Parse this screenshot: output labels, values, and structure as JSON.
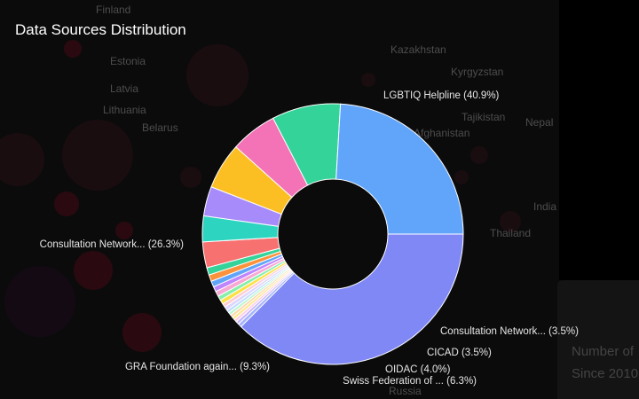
{
  "map_labels": [
    {
      "text": "Finland"
    },
    {
      "text": "Estonia"
    },
    {
      "text": "Latvia"
    },
    {
      "text": "Lithuania"
    },
    {
      "text": "Belarus"
    },
    {
      "text": "Kazakhstan"
    },
    {
      "text": "Kyrgyzstan"
    },
    {
      "text": "Tajikistan"
    },
    {
      "text": "Afghanistan"
    },
    {
      "text": "Nepal"
    },
    {
      "text": "India"
    },
    {
      "text": "Thailand"
    },
    {
      "text": "Russia"
    }
  ],
  "legend_panel": {
    "line1": "Number of",
    "line2": "Since 2010"
  },
  "colors": {
    "background": "#000000",
    "slice_border": "#ffffff"
  },
  "chart_data": {
    "type": "pie",
    "donut": true,
    "title": "Data Sources Distribution",
    "slices": [
      {
        "label": "LGBTIQ Helpline (40.9%)",
        "value": 40.9,
        "color": "#8088f6"
      },
      {
        "label": "",
        "value": 0.5,
        "color": "#a5b4fc"
      },
      {
        "label": "",
        "value": 0.4,
        "color": "#c4b5fd"
      },
      {
        "label": "",
        "value": 0.4,
        "color": "#fbcfe8"
      },
      {
        "label": "",
        "value": 0.4,
        "color": "#fde68a"
      },
      {
        "label": "",
        "value": 0.4,
        "color": "#fed7aa"
      },
      {
        "label": "",
        "value": 0.4,
        "color": "#bbf7d0"
      },
      {
        "label": "",
        "value": 0.4,
        "color": "#bfdbfe"
      },
      {
        "label": "",
        "value": 0.5,
        "color": "#ddd6fe"
      },
      {
        "label": "",
        "value": 0.5,
        "color": "#fecdd3"
      },
      {
        "label": "",
        "value": 0.6,
        "color": "#fde047"
      },
      {
        "label": "",
        "value": 0.6,
        "color": "#86efac"
      },
      {
        "label": "",
        "value": 0.7,
        "color": "#f9a8d4"
      },
      {
        "label": "",
        "value": 0.7,
        "color": "#c084fc"
      },
      {
        "label": "",
        "value": 0.8,
        "color": "#60a5fa"
      },
      {
        "label": "",
        "value": 0.9,
        "color": "#fb923c"
      },
      {
        "label": "",
        "value": 1.0,
        "color": "#34d399"
      },
      {
        "label": "Consultation Network... (3.5%)",
        "value": 3.5,
        "color": "#f87171"
      },
      {
        "label": "CICAD (3.5%)",
        "value": 3.5,
        "color": "#2dd4bf"
      },
      {
        "label": "OIDAC (4.0%)",
        "value": 4.0,
        "color": "#a78bfa"
      },
      {
        "label": "Swiss Federation of ... (6.3%)",
        "value": 6.3,
        "color": "#fbbf24"
      },
      {
        "label": "",
        "value": 6.3,
        "color": "#f472b6"
      },
      {
        "label": "GRA Foundation again... (9.3%)",
        "value": 9.3,
        "color": "#34d399"
      },
      {
        "label": "Consultation Network... (26.3%)",
        "value": 26.3,
        "color": "#60a5fa"
      }
    ]
  }
}
